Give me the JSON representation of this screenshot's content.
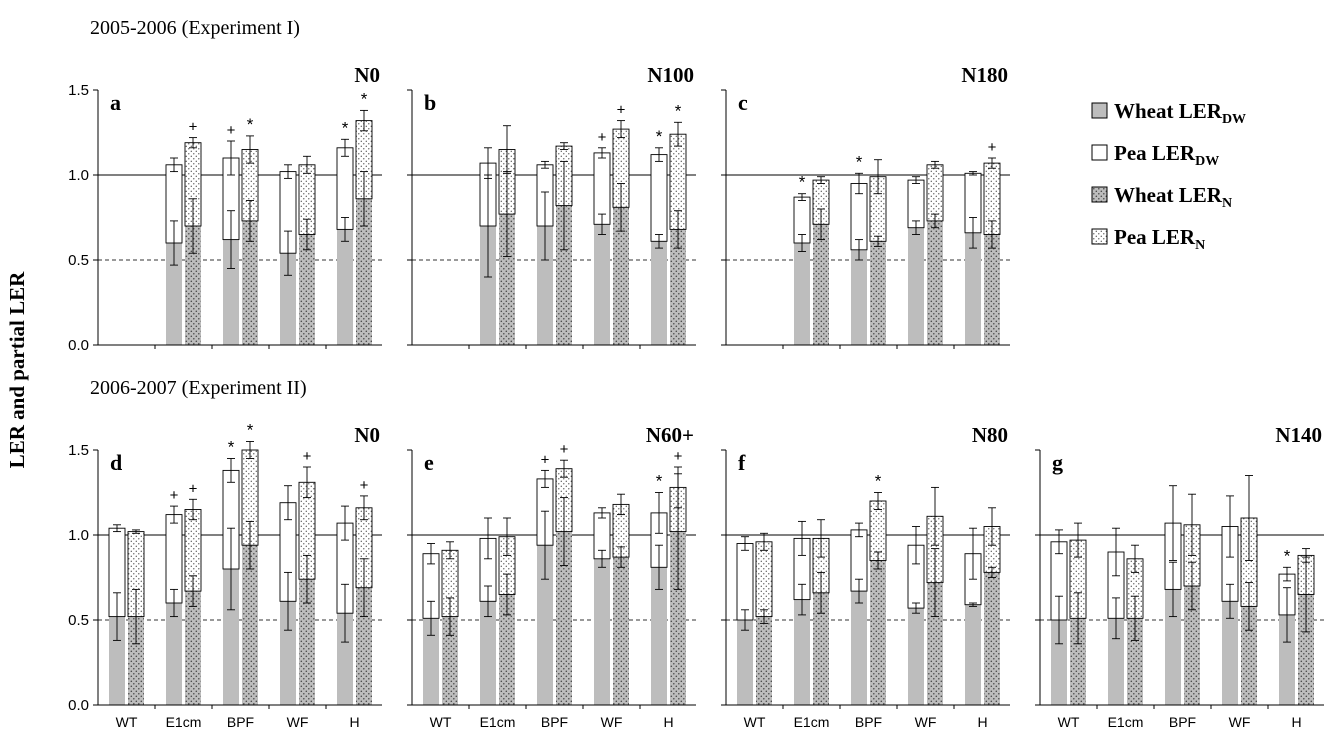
{
  "figure": {
    "y_axis_label": "LER and partial LER",
    "experiment_1_label": "2005-2006 (Experiment I)",
    "experiment_2_label": "2006-2007 (Experiment II)"
  },
  "legend": [
    {
      "main": "Wheat LER",
      "sub": "DW",
      "pattern": "gray"
    },
    {
      "main": "Pea LER",
      "sub": "DW",
      "pattern": "white"
    },
    {
      "main": "Wheat LER",
      "sub": "N",
      "pattern": "gray-dots"
    },
    {
      "main": "Pea LER",
      "sub": "N",
      "pattern": "white-dots"
    }
  ],
  "colors": {
    "wheat": "#bdbdbd",
    "pea": "#ffffff",
    "outline": "#000000"
  },
  "chart_data": [
    {
      "type": "bar",
      "stacked": true,
      "letter": "a",
      "treatment": "N0",
      "experiment": "2005-2006 (Experiment I)",
      "categories": [
        "WT",
        "E1cm",
        "BPF",
        "WF",
        "H"
      ],
      "show_categories": false,
      "ylim": [
        0,
        1.5
      ],
      "yticks": [
        "0.0",
        "0.5",
        "1.0",
        "1.5"
      ],
      "reference_lines": [
        1.0,
        0.5
      ],
      "bars": [
        {
          "cat": 0,
          "kind": "DW",
          "wheat": null,
          "total": null,
          "wheat_err": null,
          "total_err": null,
          "mark": ""
        },
        {
          "cat": 0,
          "kind": "N",
          "wheat": null,
          "total": null,
          "wheat_err": null,
          "total_err": null,
          "mark": ""
        },
        {
          "cat": 1,
          "kind": "DW",
          "wheat": 0.6,
          "total": 1.06,
          "wheat_err": 0.13,
          "total_err": 0.04,
          "mark": ""
        },
        {
          "cat": 1,
          "kind": "N",
          "wheat": 0.7,
          "total": 1.19,
          "wheat_err": 0.16,
          "total_err": 0.03,
          "mark": "+"
        },
        {
          "cat": 2,
          "kind": "DW",
          "wheat": 0.62,
          "total": 1.1,
          "wheat_err": 0.17,
          "total_err": 0.1,
          "mark": "+"
        },
        {
          "cat": 2,
          "kind": "N",
          "wheat": 0.73,
          "total": 1.15,
          "wheat_err": 0.12,
          "total_err": 0.08,
          "mark": "*"
        },
        {
          "cat": 3,
          "kind": "DW",
          "wheat": 0.54,
          "total": 1.02,
          "wheat_err": 0.13,
          "total_err": 0.04,
          "mark": ""
        },
        {
          "cat": 3,
          "kind": "N",
          "wheat": 0.65,
          "total": 1.06,
          "wheat_err": 0.09,
          "total_err": 0.05,
          "mark": ""
        },
        {
          "cat": 4,
          "kind": "DW",
          "wheat": 0.68,
          "total": 1.16,
          "wheat_err": 0.07,
          "total_err": 0.05,
          "mark": "*"
        },
        {
          "cat": 4,
          "kind": "N",
          "wheat": 0.86,
          "total": 1.32,
          "wheat_err": 0.16,
          "total_err": 0.06,
          "mark": "*"
        }
      ]
    },
    {
      "type": "bar",
      "stacked": true,
      "letter": "b",
      "treatment": "N100",
      "experiment": "2005-2006 (Experiment I)",
      "categories": [
        "WT",
        "E1cm",
        "BPF",
        "WF",
        "H"
      ],
      "show_categories": false,
      "ylim": [
        0,
        1.5
      ],
      "yticks": [
        "0.0",
        "0.5",
        "1.0",
        "1.5"
      ],
      "reference_lines": [
        1.0,
        0.5
      ],
      "bars": [
        {
          "cat": 0,
          "kind": "DW",
          "wheat": null,
          "total": null,
          "wheat_err": null,
          "total_err": null,
          "mark": ""
        },
        {
          "cat": 0,
          "kind": "N",
          "wheat": null,
          "total": null,
          "wheat_err": null,
          "total_err": null,
          "mark": ""
        },
        {
          "cat": 1,
          "kind": "DW",
          "wheat": 0.7,
          "total": 1.07,
          "wheat_err": 0.3,
          "total_err": 0.09,
          "mark": ""
        },
        {
          "cat": 1,
          "kind": "N",
          "wheat": 0.77,
          "total": 1.15,
          "wheat_err": 0.25,
          "total_err": 0.14,
          "mark": ""
        },
        {
          "cat": 2,
          "kind": "DW",
          "wheat": 0.7,
          "total": 1.06,
          "wheat_err": 0.2,
          "total_err": 0.02,
          "mark": ""
        },
        {
          "cat": 2,
          "kind": "N",
          "wheat": 0.82,
          "total": 1.17,
          "wheat_err": 0.26,
          "total_err": 0.02,
          "mark": ""
        },
        {
          "cat": 3,
          "kind": "DW",
          "wheat": 0.71,
          "total": 1.13,
          "wheat_err": 0.06,
          "total_err": 0.03,
          "mark": "+"
        },
        {
          "cat": 3,
          "kind": "N",
          "wheat": 0.81,
          "total": 1.27,
          "wheat_err": 0.14,
          "total_err": 0.05,
          "mark": "+"
        },
        {
          "cat": 4,
          "kind": "DW",
          "wheat": 0.61,
          "total": 1.12,
          "wheat_err": 0.04,
          "total_err": 0.04,
          "mark": "*"
        },
        {
          "cat": 4,
          "kind": "N",
          "wheat": 0.68,
          "total": 1.24,
          "wheat_err": 0.11,
          "total_err": 0.07,
          "mark": "*"
        }
      ]
    },
    {
      "type": "bar",
      "stacked": true,
      "letter": "c",
      "treatment": "N180",
      "experiment": "2005-2006 (Experiment I)",
      "categories": [
        "WT",
        "E1cm",
        "BPF",
        "WF",
        "H"
      ],
      "show_categories": false,
      "ylim": [
        0,
        1.5
      ],
      "yticks": [
        "0.0",
        "0.5",
        "1.0",
        "1.5"
      ],
      "reference_lines": [
        1.0,
        0.5
      ],
      "bars": [
        {
          "cat": 0,
          "kind": "DW",
          "wheat": null,
          "total": null,
          "wheat_err": null,
          "total_err": null,
          "mark": ""
        },
        {
          "cat": 0,
          "kind": "N",
          "wheat": null,
          "total": null,
          "wheat_err": null,
          "total_err": null,
          "mark": ""
        },
        {
          "cat": 1,
          "kind": "DW",
          "wheat": 0.6,
          "total": 0.87,
          "wheat_err": 0.05,
          "total_err": 0.02,
          "mark": "*"
        },
        {
          "cat": 1,
          "kind": "N",
          "wheat": 0.71,
          "total": 0.97,
          "wheat_err": 0.09,
          "total_err": 0.02,
          "mark": ""
        },
        {
          "cat": 2,
          "kind": "DW",
          "wheat": 0.56,
          "total": 0.95,
          "wheat_err": 0.06,
          "total_err": 0.06,
          "mark": "*"
        },
        {
          "cat": 2,
          "kind": "N",
          "wheat": 0.61,
          "total": 0.99,
          "wheat_err": 0.03,
          "total_err": 0.1,
          "mark": ""
        },
        {
          "cat": 3,
          "kind": "DW",
          "wheat": 0.69,
          "total": 0.97,
          "wheat_err": 0.04,
          "total_err": 0.02,
          "mark": ""
        },
        {
          "cat": 3,
          "kind": "N",
          "wheat": 0.73,
          "total": 1.06,
          "wheat_err": 0.04,
          "total_err": 0.02,
          "mark": ""
        },
        {
          "cat": 4,
          "kind": "DW",
          "wheat": 0.66,
          "total": 1.01,
          "wheat_err": 0.09,
          "total_err": 0.01,
          "mark": ""
        },
        {
          "cat": 4,
          "kind": "N",
          "wheat": 0.65,
          "total": 1.07,
          "wheat_err": 0.08,
          "total_err": 0.03,
          "mark": "+"
        }
      ]
    },
    {
      "type": "bar",
      "stacked": true,
      "letter": "d",
      "treatment": "N0",
      "experiment": "2006-2007 (Experiment II)",
      "categories": [
        "WT",
        "E1cm",
        "BPF",
        "WF",
        "H"
      ],
      "show_categories": true,
      "ylim": [
        0,
        1.5
      ],
      "yticks": [
        "0.0",
        "0.5",
        "1.0",
        "1.5"
      ],
      "reference_lines": [
        1.0,
        0.5
      ],
      "bars": [
        {
          "cat": 0,
          "kind": "DW",
          "wheat": 0.52,
          "total": 1.04,
          "wheat_err": 0.14,
          "total_err": 0.02,
          "mark": ""
        },
        {
          "cat": 0,
          "kind": "N",
          "wheat": 0.52,
          "total": 1.02,
          "wheat_err": 0.16,
          "total_err": 0.01,
          "mark": ""
        },
        {
          "cat": 1,
          "kind": "DW",
          "wheat": 0.6,
          "total": 1.12,
          "wheat_err": 0.08,
          "total_err": 0.05,
          "mark": "+"
        },
        {
          "cat": 1,
          "kind": "N",
          "wheat": 0.67,
          "total": 1.15,
          "wheat_err": 0.09,
          "total_err": 0.06,
          "mark": "+"
        },
        {
          "cat": 2,
          "kind": "DW",
          "wheat": 0.8,
          "total": 1.38,
          "wheat_err": 0.24,
          "total_err": 0.07,
          "mark": "*"
        },
        {
          "cat": 2,
          "kind": "N",
          "wheat": 0.94,
          "total": 1.5,
          "wheat_err": 0.14,
          "total_err": 0.05,
          "mark": "*"
        },
        {
          "cat": 3,
          "kind": "DW",
          "wheat": 0.61,
          "total": 1.19,
          "wheat_err": 0.17,
          "total_err": 0.1,
          "mark": ""
        },
        {
          "cat": 3,
          "kind": "N",
          "wheat": 0.74,
          "total": 1.31,
          "wheat_err": 0.14,
          "total_err": 0.09,
          "mark": "+"
        },
        {
          "cat": 4,
          "kind": "DW",
          "wheat": 0.54,
          "total": 1.07,
          "wheat_err": 0.17,
          "total_err": 0.1,
          "mark": ""
        },
        {
          "cat": 4,
          "kind": "N",
          "wheat": 0.69,
          "total": 1.16,
          "wheat_err": 0.17,
          "total_err": 0.07,
          "mark": "+"
        }
      ]
    },
    {
      "type": "bar",
      "stacked": true,
      "letter": "e",
      "treatment": "N60+",
      "experiment": "2006-2007 (Experiment II)",
      "categories": [
        "WT",
        "E1cm",
        "BPF",
        "WF",
        "H"
      ],
      "show_categories": true,
      "ylim": [
        0,
        1.5
      ],
      "yticks": [
        "0.0",
        "0.5",
        "1.0",
        "1.5"
      ],
      "reference_lines": [
        1.0,
        0.5
      ],
      "bars": [
        {
          "cat": 0,
          "kind": "DW",
          "wheat": 0.51,
          "total": 0.89,
          "wheat_err": 0.1,
          "total_err": 0.06,
          "mark": ""
        },
        {
          "cat": 0,
          "kind": "N",
          "wheat": 0.52,
          "total": 0.91,
          "wheat_err": 0.11,
          "total_err": 0.05,
          "mark": ""
        },
        {
          "cat": 1,
          "kind": "DW",
          "wheat": 0.61,
          "total": 0.98,
          "wheat_err": 0.09,
          "total_err": 0.12,
          "mark": ""
        },
        {
          "cat": 1,
          "kind": "N",
          "wheat": 0.65,
          "total": 0.99,
          "wheat_err": 0.12,
          "total_err": 0.11,
          "mark": ""
        },
        {
          "cat": 2,
          "kind": "DW",
          "wheat": 0.94,
          "total": 1.33,
          "wheat_err": 0.2,
          "total_err": 0.05,
          "mark": "+"
        },
        {
          "cat": 2,
          "kind": "N",
          "wheat": 1.02,
          "total": 1.39,
          "wheat_err": 0.2,
          "total_err": 0.05,
          "mark": "+"
        },
        {
          "cat": 3,
          "kind": "DW",
          "wheat": 0.86,
          "total": 1.13,
          "wheat_err": 0.05,
          "total_err": 0.03,
          "mark": ""
        },
        {
          "cat": 3,
          "kind": "N",
          "wheat": 0.87,
          "total": 1.18,
          "wheat_err": 0.06,
          "total_err": 0.06,
          "mark": ""
        },
        {
          "cat": 4,
          "kind": "DW",
          "wheat": 0.81,
          "total": 1.13,
          "wheat_err": 0.13,
          "total_err": 0.12,
          "mark": "*"
        },
        {
          "cat": 4,
          "kind": "N",
          "wheat": 1.02,
          "total": 1.28,
          "wheat_err": 0.34,
          "total_err": 0.12,
          "mark": "+"
        }
      ]
    },
    {
      "type": "bar",
      "stacked": true,
      "letter": "f",
      "treatment": "N80",
      "experiment": "2006-2007 (Experiment II)",
      "categories": [
        "WT",
        "E1cm",
        "BPF",
        "WF",
        "H"
      ],
      "show_categories": true,
      "ylim": [
        0,
        1.5
      ],
      "yticks": [
        "0.0",
        "0.5",
        "1.0",
        "1.5"
      ],
      "reference_lines": [
        1.0,
        0.5
      ],
      "bars": [
        {
          "cat": 0,
          "kind": "DW",
          "wheat": 0.5,
          "total": 0.95,
          "wheat_err": 0.06,
          "total_err": 0.04,
          "mark": ""
        },
        {
          "cat": 0,
          "kind": "N",
          "wheat": 0.52,
          "total": 0.96,
          "wheat_err": 0.04,
          "total_err": 0.05,
          "mark": ""
        },
        {
          "cat": 1,
          "kind": "DW",
          "wheat": 0.62,
          "total": 0.98,
          "wheat_err": 0.09,
          "total_err": 0.1,
          "mark": ""
        },
        {
          "cat": 1,
          "kind": "N",
          "wheat": 0.66,
          "total": 0.98,
          "wheat_err": 0.12,
          "total_err": 0.11,
          "mark": ""
        },
        {
          "cat": 2,
          "kind": "DW",
          "wheat": 0.67,
          "total": 1.03,
          "wheat_err": 0.07,
          "total_err": 0.04,
          "mark": ""
        },
        {
          "cat": 2,
          "kind": "N",
          "wheat": 0.85,
          "total": 1.2,
          "wheat_err": 0.05,
          "total_err": 0.05,
          "mark": "*"
        },
        {
          "cat": 3,
          "kind": "DW",
          "wheat": 0.57,
          "total": 0.94,
          "wheat_err": 0.03,
          "total_err": 0.11,
          "mark": ""
        },
        {
          "cat": 3,
          "kind": "N",
          "wheat": 0.72,
          "total": 1.11,
          "wheat_err": 0.2,
          "total_err": 0.17,
          "mark": ""
        },
        {
          "cat": 4,
          "kind": "DW",
          "wheat": 0.59,
          "total": 0.89,
          "wheat_err": 0.01,
          "total_err": 0.15,
          "mark": ""
        },
        {
          "cat": 4,
          "kind": "N",
          "wheat": 0.78,
          "total": 1.05,
          "wheat_err": 0.03,
          "total_err": 0.11,
          "mark": ""
        }
      ]
    },
    {
      "type": "bar",
      "stacked": true,
      "letter": "g",
      "treatment": "N140",
      "experiment": "2006-2007 (Experiment II)",
      "categories": [
        "WT",
        "E1cm",
        "BPF",
        "WF",
        "H"
      ],
      "show_categories": true,
      "ylim": [
        0,
        1.5
      ],
      "yticks": [
        "0.0",
        "0.5",
        "1.0",
        "1.5"
      ],
      "reference_lines": [
        1.0,
        0.5
      ],
      "bars": [
        {
          "cat": 0,
          "kind": "DW",
          "wheat": 0.5,
          "total": 0.96,
          "wheat_err": 0.14,
          "total_err": 0.07,
          "mark": ""
        },
        {
          "cat": 0,
          "kind": "N",
          "wheat": 0.51,
          "total": 0.97,
          "wheat_err": 0.15,
          "total_err": 0.1,
          "mark": ""
        },
        {
          "cat": 1,
          "kind": "DW",
          "wheat": 0.51,
          "total": 0.9,
          "wheat_err": 0.12,
          "total_err": 0.14,
          "mark": ""
        },
        {
          "cat": 1,
          "kind": "N",
          "wheat": 0.51,
          "total": 0.86,
          "wheat_err": 0.13,
          "total_err": 0.08,
          "mark": ""
        },
        {
          "cat": 2,
          "kind": "DW",
          "wheat": 0.68,
          "total": 1.07,
          "wheat_err": 0.16,
          "total_err": 0.22,
          "mark": ""
        },
        {
          "cat": 2,
          "kind": "N",
          "wheat": 0.7,
          "total": 1.06,
          "wheat_err": 0.14,
          "total_err": 0.18,
          "mark": ""
        },
        {
          "cat": 3,
          "kind": "DW",
          "wheat": 0.61,
          "total": 1.05,
          "wheat_err": 0.1,
          "total_err": 0.18,
          "mark": ""
        },
        {
          "cat": 3,
          "kind": "N",
          "wheat": 0.58,
          "total": 1.1,
          "wheat_err": 0.14,
          "total_err": 0.25,
          "mark": ""
        },
        {
          "cat": 4,
          "kind": "DW",
          "wheat": 0.53,
          "total": 0.77,
          "wheat_err": 0.16,
          "total_err": 0.04,
          "mark": "*"
        },
        {
          "cat": 4,
          "kind": "N",
          "wheat": 0.65,
          "total": 0.88,
          "wheat_err": 0.22,
          "total_err": 0.04,
          "mark": ""
        }
      ]
    }
  ]
}
